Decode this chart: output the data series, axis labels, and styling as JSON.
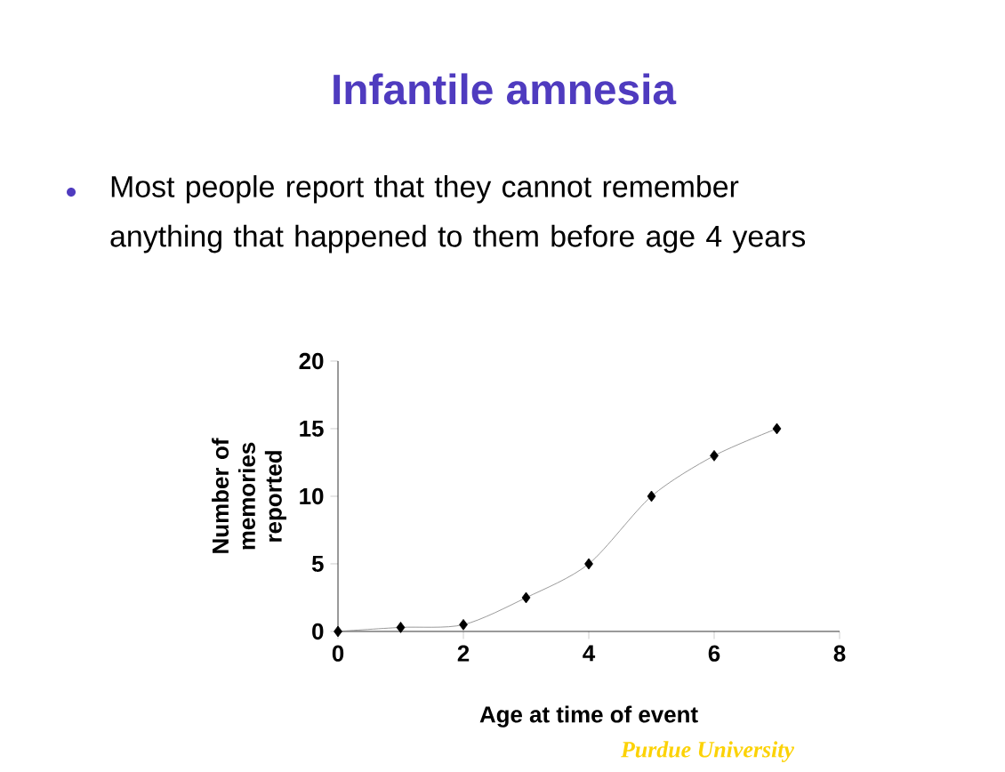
{
  "chart_data": {
    "type": "line",
    "title": "Infantile amnesia",
    "annotations": [
      "Most people report that they cannot remember anything that happened to them before age 4 years",
      "Purdue University"
    ],
    "xlabel": "Age at time of event",
    "ylabel": "Number of memories reported",
    "x": [
      0,
      1,
      2,
      3,
      4,
      5,
      6,
      7
    ],
    "series": [
      {
        "color": "#808080",
        "values": [
          0,
          0.3,
          0.5,
          2.5,
          5,
          10,
          13,
          15
        ]
      }
    ],
    "xlim": [
      0,
      8
    ],
    "ylim": [
      0,
      20
    ],
    "xticks": [
      0,
      2,
      4,
      6,
      8
    ],
    "yticks": [
      0,
      5,
      10,
      15,
      20
    ],
    "marker": "diamond",
    "line_style": "solid"
  }
}
